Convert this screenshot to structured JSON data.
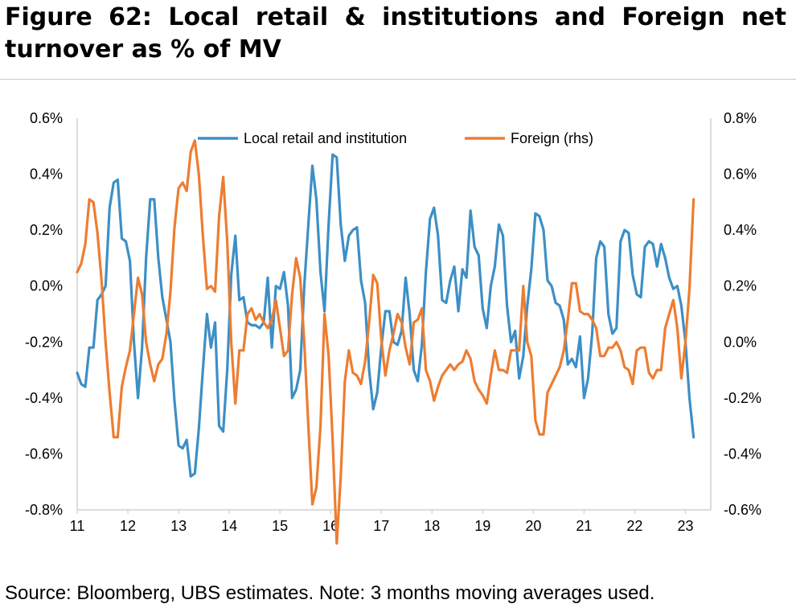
{
  "title": "Figure 62: Local retail & institutions and Foreign net turnover as % of MV",
  "source": "Source: Bloomberg, UBS estimates. Note: 3 months moving averages used.",
  "chart_data": {
    "type": "line",
    "x_tick_labels": [
      "11",
      "12",
      "13",
      "14",
      "15",
      "16",
      "17",
      "18",
      "19",
      "20",
      "21",
      "22",
      "23"
    ],
    "x_range": [
      11.0,
      23.5
    ],
    "ylim_left": [
      -0.8,
      0.6
    ],
    "ylim_right": [
      -0.6,
      0.8
    ],
    "y_left_ticks": [
      "0.6%",
      "0.4%",
      "0.2%",
      "0.0%",
      "-0.2%",
      "-0.4%",
      "-0.6%",
      "-0.8%"
    ],
    "y_right_ticks": [
      "0.8%",
      "0.6%",
      "0.4%",
      "0.2%",
      "0.0%",
      "-0.2%",
      "-0.4%",
      "-0.6%"
    ],
    "legend_position": "top",
    "grid": false,
    "series": [
      {
        "name": "Local retail and institution",
        "axis": "left",
        "color": "#3d8fc6",
        "points": [
          [
            11.0,
            -0.31
          ],
          [
            11.08,
            -0.35
          ],
          [
            11.16,
            -0.36
          ],
          [
            11.24,
            -0.22
          ],
          [
            11.32,
            -0.22
          ],
          [
            11.4,
            -0.05
          ],
          [
            11.48,
            -0.03
          ],
          [
            11.56,
            0.0
          ],
          [
            11.64,
            0.28
          ],
          [
            11.72,
            0.37
          ],
          [
            11.8,
            0.38
          ],
          [
            11.88,
            0.17
          ],
          [
            11.96,
            0.16
          ],
          [
            12.04,
            0.09
          ],
          [
            12.12,
            -0.2
          ],
          [
            12.2,
            -0.4
          ],
          [
            12.28,
            -0.22
          ],
          [
            12.36,
            0.1
          ],
          [
            12.44,
            0.31
          ],
          [
            12.52,
            0.31
          ],
          [
            12.6,
            0.1
          ],
          [
            12.68,
            -0.04
          ],
          [
            12.76,
            -0.12
          ],
          [
            12.84,
            -0.2
          ],
          [
            12.92,
            -0.41
          ],
          [
            13.0,
            -0.57
          ],
          [
            13.08,
            -0.58
          ],
          [
            13.16,
            -0.55
          ],
          [
            13.24,
            -0.68
          ],
          [
            13.32,
            -0.67
          ],
          [
            13.4,
            -0.51
          ],
          [
            13.48,
            -0.3
          ],
          [
            13.56,
            -0.1
          ],
          [
            13.64,
            -0.22
          ],
          [
            13.72,
            -0.13
          ],
          [
            13.8,
            -0.5
          ],
          [
            13.88,
            -0.52
          ],
          [
            13.96,
            -0.3
          ],
          [
            14.04,
            0.04
          ],
          [
            14.12,
            0.18
          ],
          [
            14.2,
            -0.05
          ],
          [
            14.28,
            -0.04
          ],
          [
            14.36,
            -0.13
          ],
          [
            14.44,
            -0.14
          ],
          [
            14.52,
            -0.14
          ],
          [
            14.6,
            -0.15
          ],
          [
            14.68,
            -0.13
          ],
          [
            14.76,
            0.03
          ],
          [
            14.84,
            -0.22
          ],
          [
            14.92,
            0.0
          ],
          [
            15.0,
            -0.01
          ],
          [
            15.08,
            0.05
          ],
          [
            15.16,
            -0.07
          ],
          [
            15.24,
            -0.4
          ],
          [
            15.32,
            -0.37
          ],
          [
            15.4,
            -0.3
          ],
          [
            15.48,
            0.0
          ],
          [
            15.56,
            0.22
          ],
          [
            15.64,
            0.43
          ],
          [
            15.72,
            0.31
          ],
          [
            15.8,
            0.05
          ],
          [
            15.88,
            -0.09
          ],
          [
            15.96,
            0.22
          ],
          [
            16.04,
            0.47
          ],
          [
            16.12,
            0.46
          ],
          [
            16.2,
            0.22
          ],
          [
            16.28,
            0.09
          ],
          [
            16.36,
            0.18
          ],
          [
            16.44,
            0.2
          ],
          [
            16.52,
            0.21
          ],
          [
            16.6,
            0.02
          ],
          [
            16.68,
            -0.06
          ],
          [
            16.76,
            -0.3
          ],
          [
            16.84,
            -0.44
          ],
          [
            16.92,
            -0.38
          ],
          [
            17.0,
            -0.22
          ],
          [
            17.08,
            -0.09
          ],
          [
            17.16,
            -0.09
          ],
          [
            17.24,
            -0.2
          ],
          [
            17.32,
            -0.21
          ],
          [
            17.4,
            -0.16
          ],
          [
            17.48,
            0.03
          ],
          [
            17.56,
            -0.1
          ],
          [
            17.64,
            -0.3
          ],
          [
            17.72,
            -0.34
          ],
          [
            17.8,
            -0.21
          ],
          [
            17.88,
            0.05
          ],
          [
            17.96,
            0.24
          ],
          [
            18.04,
            0.28
          ],
          [
            18.12,
            0.18
          ],
          [
            18.2,
            -0.05
          ],
          [
            18.28,
            -0.06
          ],
          [
            18.36,
            0.02
          ],
          [
            18.44,
            0.07
          ],
          [
            18.52,
            -0.09
          ],
          [
            18.6,
            0.06
          ],
          [
            18.68,
            0.03
          ],
          [
            18.76,
            0.27
          ],
          [
            18.84,
            0.14
          ],
          [
            18.92,
            0.11
          ],
          [
            19.0,
            -0.08
          ],
          [
            19.08,
            -0.15
          ],
          [
            19.16,
            0.0
          ],
          [
            19.24,
            0.07
          ],
          [
            19.32,
            0.22
          ],
          [
            19.4,
            0.18
          ],
          [
            19.48,
            -0.07
          ],
          [
            19.56,
            -0.2
          ],
          [
            19.64,
            -0.16
          ],
          [
            19.72,
            -0.33
          ],
          [
            19.8,
            -0.25
          ],
          [
            19.88,
            -0.07
          ],
          [
            19.96,
            0.06
          ],
          [
            20.04,
            0.26
          ],
          [
            20.12,
            0.25
          ],
          [
            20.2,
            0.2
          ],
          [
            20.28,
            0.02
          ],
          [
            20.36,
            0.0
          ],
          [
            20.44,
            -0.06
          ],
          [
            20.52,
            -0.07
          ],
          [
            20.6,
            -0.12
          ],
          [
            20.68,
            -0.28
          ],
          [
            20.76,
            -0.26
          ],
          [
            20.84,
            -0.29
          ],
          [
            20.92,
            -0.18
          ],
          [
            21.0,
            -0.4
          ],
          [
            21.08,
            -0.33
          ],
          [
            21.16,
            -0.17
          ],
          [
            21.24,
            0.1
          ],
          [
            21.32,
            0.16
          ],
          [
            21.4,
            0.14
          ],
          [
            21.48,
            -0.1
          ],
          [
            21.56,
            -0.17
          ],
          [
            21.64,
            -0.15
          ],
          [
            21.72,
            0.16
          ],
          [
            21.8,
            0.2
          ],
          [
            21.88,
            0.19
          ],
          [
            21.96,
            0.04
          ],
          [
            22.04,
            -0.03
          ],
          [
            22.12,
            -0.04
          ],
          [
            22.2,
            0.14
          ],
          [
            22.28,
            0.16
          ],
          [
            22.36,
            0.15
          ],
          [
            22.44,
            0.07
          ],
          [
            22.52,
            0.15
          ],
          [
            22.6,
            0.1
          ],
          [
            22.68,
            0.03
          ],
          [
            22.76,
            -0.01
          ],
          [
            22.84,
            0.0
          ],
          [
            22.92,
            -0.07
          ],
          [
            23.0,
            -0.2
          ],
          [
            23.08,
            -0.4
          ],
          [
            23.16,
            -0.54
          ]
        ]
      },
      {
        "name": "Foreign (rhs)",
        "axis": "right",
        "color": "#ed7d31",
        "points": [
          [
            11.0,
            0.25
          ],
          [
            11.08,
            0.28
          ],
          [
            11.16,
            0.35
          ],
          [
            11.24,
            0.51
          ],
          [
            11.32,
            0.5
          ],
          [
            11.4,
            0.39
          ],
          [
            11.48,
            0.22
          ],
          [
            11.56,
            0.0
          ],
          [
            11.64,
            -0.18
          ],
          [
            11.72,
            -0.34
          ],
          [
            11.8,
            -0.34
          ],
          [
            11.88,
            -0.16
          ],
          [
            11.96,
            -0.09
          ],
          [
            12.04,
            -0.03
          ],
          [
            12.12,
            0.1
          ],
          [
            12.2,
            0.23
          ],
          [
            12.28,
            0.17
          ],
          [
            12.36,
            0.0
          ],
          [
            12.44,
            -0.08
          ],
          [
            12.52,
            -0.14
          ],
          [
            12.6,
            -0.08
          ],
          [
            12.68,
            -0.06
          ],
          [
            12.76,
            0.03
          ],
          [
            12.84,
            0.18
          ],
          [
            12.92,
            0.41
          ],
          [
            13.0,
            0.55
          ],
          [
            13.08,
            0.57
          ],
          [
            13.16,
            0.54
          ],
          [
            13.24,
            0.68
          ],
          [
            13.32,
            0.72
          ],
          [
            13.4,
            0.6
          ],
          [
            13.48,
            0.38
          ],
          [
            13.56,
            0.19
          ],
          [
            13.64,
            0.2
          ],
          [
            13.72,
            0.18
          ],
          [
            13.8,
            0.45
          ],
          [
            13.88,
            0.59
          ],
          [
            13.96,
            0.36
          ],
          [
            14.04,
            0.0
          ],
          [
            14.12,
            -0.22
          ],
          [
            14.2,
            -0.03
          ],
          [
            14.28,
            -0.03
          ],
          [
            14.36,
            0.1
          ],
          [
            14.44,
            0.12
          ],
          [
            14.52,
            0.08
          ],
          [
            14.6,
            0.1
          ],
          [
            14.68,
            0.07
          ],
          [
            14.76,
            0.05
          ],
          [
            14.84,
            0.08
          ],
          [
            14.92,
            0.15
          ],
          [
            15.0,
            0.05
          ],
          [
            15.08,
            -0.05
          ],
          [
            15.16,
            -0.03
          ],
          [
            15.24,
            0.17
          ],
          [
            15.32,
            0.3
          ],
          [
            15.4,
            0.23
          ],
          [
            15.48,
            0.0
          ],
          [
            15.56,
            -0.3
          ],
          [
            15.64,
            -0.58
          ],
          [
            15.72,
            -0.52
          ],
          [
            15.8,
            -0.3
          ],
          [
            15.88,
            0.1
          ],
          [
            15.96,
            -0.05
          ],
          [
            16.04,
            -0.35
          ],
          [
            16.12,
            -0.72
          ],
          [
            16.2,
            -0.48
          ],
          [
            16.28,
            -0.14
          ],
          [
            16.36,
            -0.03
          ],
          [
            16.44,
            -0.11
          ],
          [
            16.52,
            -0.12
          ],
          [
            16.6,
            -0.15
          ],
          [
            16.68,
            -0.07
          ],
          [
            16.76,
            0.07
          ],
          [
            16.84,
            0.24
          ],
          [
            16.92,
            0.21
          ],
          [
            17.0,
            0.01
          ],
          [
            17.08,
            -0.12
          ],
          [
            17.16,
            -0.03
          ],
          [
            17.24,
            0.03
          ],
          [
            17.32,
            0.1
          ],
          [
            17.4,
            0.07
          ],
          [
            17.48,
            -0.02
          ],
          [
            17.56,
            -0.08
          ],
          [
            17.64,
            0.07
          ],
          [
            17.72,
            0.08
          ],
          [
            17.8,
            0.12
          ],
          [
            17.88,
            -0.1
          ],
          [
            17.96,
            -0.14
          ],
          [
            18.04,
            -0.21
          ],
          [
            18.12,
            -0.16
          ],
          [
            18.2,
            -0.12
          ],
          [
            18.28,
            -0.1
          ],
          [
            18.36,
            -0.08
          ],
          [
            18.44,
            -0.1
          ],
          [
            18.52,
            -0.08
          ],
          [
            18.6,
            -0.07
          ],
          [
            18.68,
            -0.03
          ],
          [
            18.76,
            -0.06
          ],
          [
            18.84,
            -0.14
          ],
          [
            18.92,
            -0.17
          ],
          [
            19.0,
            -0.19
          ],
          [
            19.08,
            -0.22
          ],
          [
            19.16,
            -0.12
          ],
          [
            19.24,
            -0.03
          ],
          [
            19.32,
            -0.1
          ],
          [
            19.4,
            -0.1
          ],
          [
            19.48,
            -0.11
          ],
          [
            19.56,
            -0.03
          ],
          [
            19.64,
            -0.03
          ],
          [
            19.72,
            -0.03
          ],
          [
            19.8,
            0.2
          ],
          [
            19.88,
            0.0
          ],
          [
            19.96,
            -0.05
          ],
          [
            20.04,
            -0.28
          ],
          [
            20.12,
            -0.33
          ],
          [
            20.2,
            -0.33
          ],
          [
            20.28,
            -0.18
          ],
          [
            20.36,
            -0.15
          ],
          [
            20.44,
            -0.12
          ],
          [
            20.52,
            -0.09
          ],
          [
            20.6,
            -0.03
          ],
          [
            20.68,
            0.08
          ],
          [
            20.76,
            0.21
          ],
          [
            20.84,
            0.21
          ],
          [
            20.92,
            0.11
          ],
          [
            21.0,
            0.1
          ],
          [
            21.08,
            0.1
          ],
          [
            21.16,
            0.08
          ],
          [
            21.24,
            0.05
          ],
          [
            21.32,
            -0.05
          ],
          [
            21.4,
            -0.05
          ],
          [
            21.48,
            -0.02
          ],
          [
            21.56,
            -0.02
          ],
          [
            21.64,
            0.0
          ],
          [
            21.72,
            -0.03
          ],
          [
            21.8,
            -0.09
          ],
          [
            21.88,
            -0.1
          ],
          [
            21.96,
            -0.15
          ],
          [
            22.04,
            -0.03
          ],
          [
            22.12,
            -0.02
          ],
          [
            22.2,
            -0.02
          ],
          [
            22.28,
            -0.11
          ],
          [
            22.36,
            -0.13
          ],
          [
            22.44,
            -0.1
          ],
          [
            22.52,
            -0.1
          ],
          [
            22.6,
            0.05
          ],
          [
            22.68,
            0.1
          ],
          [
            22.76,
            0.15
          ],
          [
            22.84,
            0.05
          ],
          [
            22.92,
            -0.13
          ],
          [
            23.0,
            0.0
          ],
          [
            23.08,
            0.19
          ],
          [
            23.16,
            0.51
          ]
        ]
      }
    ]
  }
}
